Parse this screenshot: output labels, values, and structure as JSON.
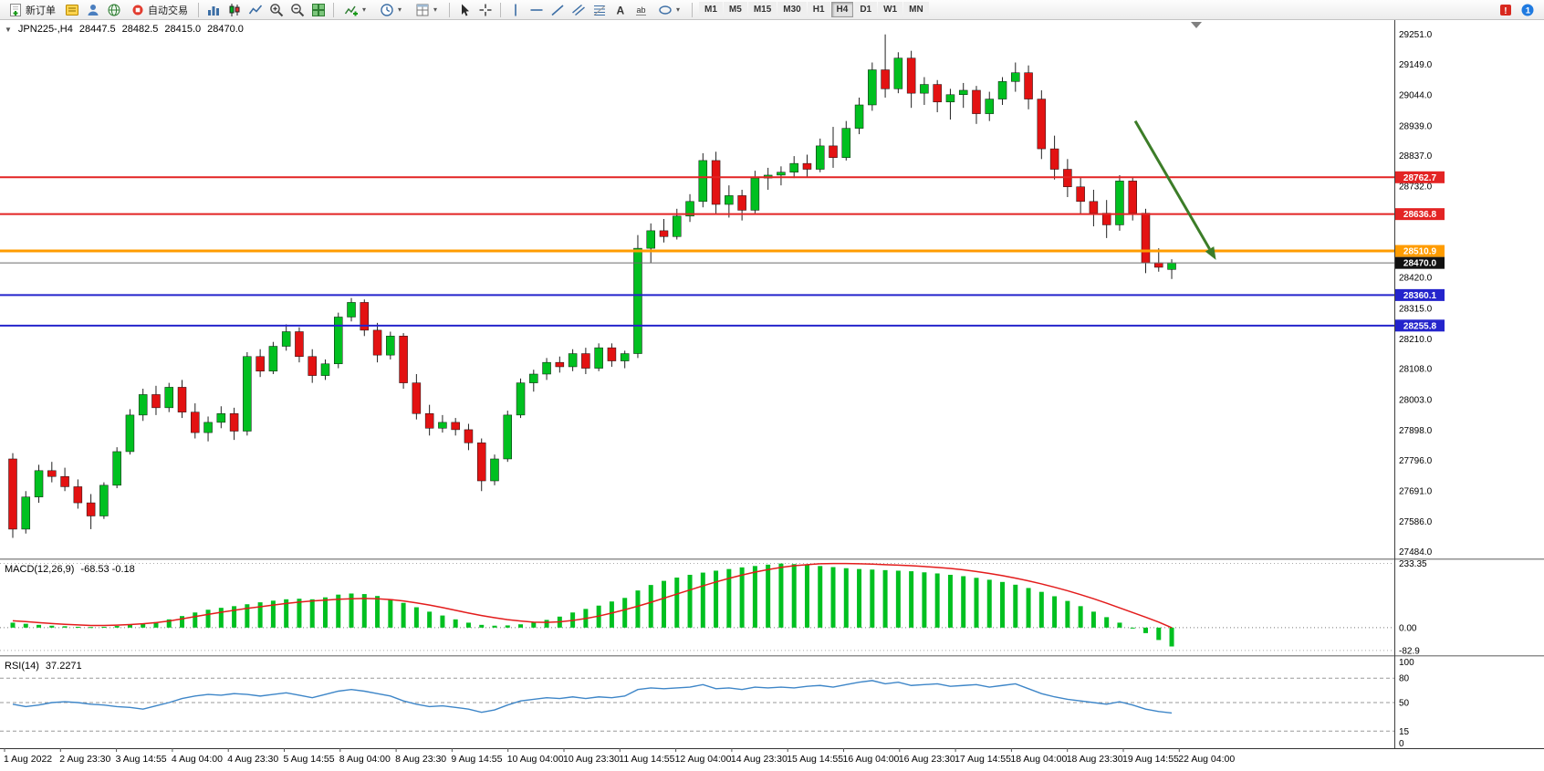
{
  "toolbar": {
    "new_order_label": "新订单",
    "auto_trading_label": "自动交易",
    "timeframes": [
      "M1",
      "M5",
      "M15",
      "M30",
      "H1",
      "H4",
      "D1",
      "W1",
      "MN"
    ],
    "active_timeframe": "H4",
    "notification_count": "1"
  },
  "chart_header": {
    "collapse": "▼",
    "symbol": "JPN225-,H4",
    "o": "28447.5",
    "h": "28482.5",
    "l": "28415.0",
    "c": "28470.0"
  },
  "colors": {
    "candle_up": "#00c020",
    "candle_down": "#e31212",
    "wick": "#222222",
    "macd_hist": "#00c020",
    "macd_signal": "#e31c1c",
    "rsi_line": "#3e86c8",
    "level_red": "#e32424",
    "level_orange": "#ff9c00",
    "level_blue": "#2424cc",
    "current_line": "#6b6b6b",
    "current_badge": "#111111",
    "arrow": "#3c7d28"
  },
  "chart_data": [
    {
      "type": "candlestick",
      "title": "JPN225-,H4",
      "timeframe": "H4",
      "ylim": [
        27460,
        29300
      ],
      "y_ticks": [
        29251.0,
        29149.0,
        29044.0,
        28939.0,
        28837.0,
        28732.0,
        28420.0,
        28315.0,
        28210.0,
        28108.0,
        28003.0,
        27898.0,
        27796.0,
        27691.0,
        27586.0,
        27484.0
      ],
      "x_labels": [
        "1 Aug 2022",
        "2 Aug 23:30",
        "3 Aug 14:55",
        "4 Aug 04:00",
        "4 Aug 23:30",
        "5 Aug 14:55",
        "8 Aug 04:00",
        "8 Aug 23:30",
        "9 Aug 14:55",
        "10 Aug 04:00",
        "10 Aug 23:30",
        "11 Aug 14:55",
        "12 Aug 04:00",
        "14 Aug 23:30",
        "15 Aug 14:55",
        "16 Aug 04:00",
        "16 Aug 23:30",
        "17 Aug 14:55",
        "18 Aug 04:00",
        "18 Aug 23:30",
        "19 Aug 14:55",
        "22 Aug 04:00"
      ],
      "levels": [
        {
          "value": 28762.7,
          "color": "#e32424",
          "width": 2
        },
        {
          "value": 28636.8,
          "color": "#e32424",
          "width": 2
        },
        {
          "value": 28510.9,
          "color": "#ff9c00",
          "width": 3
        },
        {
          "value": 28360.1,
          "color": "#2424cc",
          "width": 2
        },
        {
          "value": 28255.8,
          "color": "#2424cc",
          "width": 2
        }
      ],
      "current_price": 28470.0,
      "annotation_arrow": {
        "from_bar": 86.2,
        "from_price": 28955,
        "to_bar": 92.4,
        "to_price": 28480,
        "color": "#3c7d28",
        "width": 3
      },
      "candles_ohlc": [
        [
          27800,
          27820,
          27530,
          27560
        ],
        [
          27560,
          27690,
          27545,
          27670
        ],
        [
          27670,
          27780,
          27650,
          27760
        ],
        [
          27760,
          27790,
          27720,
          27740
        ],
        [
          27740,
          27770,
          27690,
          27705
        ],
        [
          27705,
          27730,
          27630,
          27650
        ],
        [
          27650,
          27680,
          27560,
          27605
        ],
        [
          27605,
          27720,
          27595,
          27710
        ],
        [
          27710,
          27840,
          27700,
          27825
        ],
        [
          27825,
          27970,
          27815,
          27950
        ],
        [
          27950,
          28040,
          27930,
          28020
        ],
        [
          28020,
          28050,
          27950,
          27975
        ],
        [
          27975,
          28060,
          27960,
          28045
        ],
        [
          28045,
          28070,
          27940,
          27960
        ],
        [
          27960,
          27990,
          27870,
          27890
        ],
        [
          27890,
          27945,
          27860,
          27925
        ],
        [
          27925,
          27980,
          27905,
          27955
        ],
        [
          27955,
          27975,
          27865,
          27895
        ],
        [
          27895,
          28165,
          27880,
          28150
        ],
        [
          28150,
          28175,
          28080,
          28100
        ],
        [
          28100,
          28200,
          28090,
          28185
        ],
        [
          28185,
          28260,
          28170,
          28235
        ],
        [
          28235,
          28250,
          28130,
          28150
        ],
        [
          28150,
          28175,
          28060,
          28085
        ],
        [
          28085,
          28140,
          28070,
          28125
        ],
        [
          28125,
          28300,
          28110,
          28285
        ],
        [
          28285,
          28350,
          28270,
          28335
        ],
        [
          28335,
          28345,
          28220,
          28240
        ],
        [
          28240,
          28265,
          28130,
          28155
        ],
        [
          28155,
          28235,
          28140,
          28220
        ],
        [
          28220,
          28230,
          28040,
          28060
        ],
        [
          28060,
          28090,
          27935,
          27955
        ],
        [
          27955,
          27985,
          27880,
          27905
        ],
        [
          27905,
          27950,
          27890,
          27925
        ],
        [
          27925,
          27940,
          27880,
          27900
        ],
        [
          27900,
          27920,
          27830,
          27855
        ],
        [
          27855,
          27870,
          27690,
          27725
        ],
        [
          27725,
          27815,
          27710,
          27800
        ],
        [
          27800,
          27965,
          27790,
          27950
        ],
        [
          27950,
          28075,
          27940,
          28060
        ],
        [
          28060,
          28105,
          28030,
          28090
        ],
        [
          28090,
          28145,
          28070,
          28130
        ],
        [
          28130,
          28150,
          28095,
          28115
        ],
        [
          28115,
          28175,
          28100,
          28160
        ],
        [
          28160,
          28180,
          28090,
          28110
        ],
        [
          28110,
          28195,
          28100,
          28180
        ],
        [
          28180,
          28195,
          28115,
          28135
        ],
        [
          28135,
          28170,
          28110,
          28160
        ],
        [
          28160,
          28565,
          28145,
          28520
        ],
        [
          28520,
          28605,
          28470,
          28580
        ],
        [
          28580,
          28620,
          28540,
          28560
        ],
        [
          28560,
          28655,
          28550,
          28630
        ],
        [
          28630,
          28705,
          28610,
          28680
        ],
        [
          28680,
          28845,
          28660,
          28820
        ],
        [
          28820,
          28850,
          28635,
          28670
        ],
        [
          28670,
          28735,
          28625,
          28700
        ],
        [
          28700,
          28720,
          28615,
          28650
        ],
        [
          28650,
          28785,
          28640,
          28760
        ],
        [
          28760,
          28795,
          28720,
          28770
        ],
        [
          28770,
          28800,
          28735,
          28780
        ],
        [
          28780,
          28835,
          28760,
          28810
        ],
        [
          28810,
          28840,
          28765,
          28790
        ],
        [
          28790,
          28895,
          28780,
          28870
        ],
        [
          28870,
          28935,
          28795,
          28830
        ],
        [
          28830,
          28955,
          28820,
          28930
        ],
        [
          28930,
          29035,
          28910,
          29010
        ],
        [
          29010,
          29155,
          28990,
          29130
        ],
        [
          29130,
          29251,
          29035,
          29065
        ],
        [
          29065,
          29190,
          29050,
          29170
        ],
        [
          29170,
          29195,
          29000,
          29050
        ],
        [
          29050,
          29105,
          29010,
          29080
        ],
        [
          29080,
          29095,
          28985,
          29020
        ],
        [
          29020,
          29065,
          28960,
          29045
        ],
        [
          29045,
          29085,
          29000,
          29060
        ],
        [
          29060,
          29075,
          28945,
          28980
        ],
        [
          28980,
          29055,
          28955,
          29030
        ],
        [
          29030,
          29105,
          29010,
          29090
        ],
        [
          29090,
          29155,
          29055,
          29120
        ],
        [
          29120,
          29145,
          28995,
          29030
        ],
        [
          29030,
          29060,
          28825,
          28860
        ],
        [
          28860,
          28905,
          28755,
          28790
        ],
        [
          28790,
          28825,
          28695,
          28730
        ],
        [
          28730,
          28765,
          28635,
          28680
        ],
        [
          28680,
          28720,
          28595,
          28640
        ],
        [
          28640,
          28685,
          28555,
          28600
        ],
        [
          28600,
          28770,
          28580,
          28750
        ],
        [
          28750,
          28765,
          28615,
          28640
        ],
        [
          28640,
          28655,
          28435,
          28470
        ],
        [
          28470,
          28520,
          28440,
          28455
        ],
        [
          28447.5,
          28482.5,
          28415.0,
          28470.0
        ]
      ]
    },
    {
      "type": "bar",
      "name": "MACD(12,26,9)",
      "values_text": "-68.53 -0.18",
      "ylim": [
        -100,
        245
      ],
      "y_ticks": [
        {
          "v": 233.35,
          "label": "233.35"
        },
        {
          "v": 0,
          "label": "0.00"
        },
        {
          "v": -82.9,
          "label": "-82.9"
        }
      ],
      "histogram": [
        18,
        14,
        10,
        7,
        5,
        3,
        2,
        3,
        6,
        10,
        14,
        20,
        30,
        42,
        55,
        65,
        72,
        78,
        85,
        92,
        98,
        103,
        105,
        103,
        110,
        120,
        124,
        122,
        115,
        104,
        90,
        74,
        58,
        44,
        30,
        18,
        10,
        7,
        8,
        12,
        18,
        28,
        40,
        55,
        68,
        80,
        95,
        108,
        135,
        155,
        170,
        182,
        192,
        200,
        207,
        213,
        219,
        224,
        229,
        233,
        231,
        228,
        224,
        220,
        216,
        213,
        211,
        209,
        207,
        205,
        201,
        197,
        192,
        187,
        181,
        174,
        166,
        156,
        144,
        130,
        114,
        97,
        78,
        58,
        38,
        18,
        0,
        -20,
        -45,
        -68.53
      ],
      "signal": [
        25,
        22,
        18,
        15,
        12,
        10,
        8,
        8,
        9,
        11,
        14,
        18,
        24,
        32,
        40,
        48,
        56,
        63,
        70,
        76,
        82,
        88,
        93,
        97,
        100,
        103,
        105,
        106,
        105,
        102,
        97,
        90,
        82,
        73,
        63,
        53,
        44,
        36,
        29,
        24,
        20,
        19,
        21,
        26,
        33,
        42,
        53,
        65,
        78,
        92,
        107,
        122,
        137,
        152,
        166,
        179,
        191,
        202,
        211,
        219,
        225,
        229,
        232,
        233,
        233,
        232,
        231,
        229,
        227,
        225,
        222,
        219,
        215,
        210,
        204,
        197,
        189,
        180,
        170,
        159,
        147,
        134,
        120,
        105,
        89,
        72,
        55,
        38,
        20,
        -0.18
      ]
    },
    {
      "type": "line",
      "name": "RSI(14)",
      "values_text": "37.2271",
      "ylim": [
        -6,
        106
      ],
      "y_ticks": [
        {
          "v": 100,
          "label": "100"
        },
        {
          "v": 80,
          "label": "80"
        },
        {
          "v": 50,
          "label": "50"
        },
        {
          "v": 15,
          "label": "15"
        },
        {
          "v": 0,
          "label": "0"
        }
      ],
      "level_lines": [
        80,
        50,
        15
      ],
      "values": [
        48,
        45,
        47,
        50,
        51,
        50,
        48,
        47,
        45,
        44,
        42,
        46,
        50,
        55,
        58,
        60,
        59,
        61,
        60,
        58,
        60,
        62,
        59,
        56,
        60,
        64,
        66,
        64,
        61,
        58,
        52,
        48,
        45,
        46,
        44,
        42,
        38,
        41,
        47,
        52,
        54,
        56,
        55,
        57,
        55,
        57,
        56,
        58,
        66,
        68,
        67,
        68,
        69,
        72,
        67,
        68,
        66,
        69,
        68,
        69,
        68,
        70,
        71,
        69,
        72,
        75,
        77,
        73,
        75,
        71,
        72,
        73,
        70,
        71,
        72,
        69,
        71,
        73,
        67,
        61,
        57,
        54,
        52,
        50,
        48,
        51,
        47,
        42,
        39,
        37.2271
      ]
    }
  ]
}
